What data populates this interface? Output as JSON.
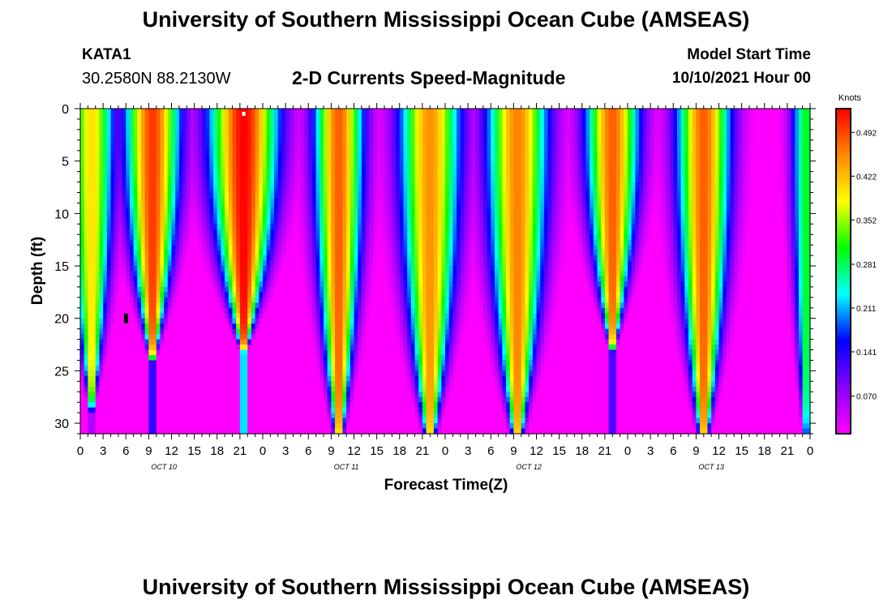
{
  "header": {
    "title": "University of Southern Mississippi Ocean Cube (AMSEAS)",
    "station_id": "KATA1",
    "coordinates": "30.2580N  88.2130W",
    "plot_title": "2-D Currents Speed-Magnitude",
    "model_start_label": "Model Start Time",
    "model_start_value": "10/10/2021 Hour 00"
  },
  "footer": {
    "title": "University of Southern Mississippi Ocean Cube (AMSEAS)"
  },
  "chart_data": {
    "type": "heatmap",
    "title": "2-D Currents Speed-Magnitude",
    "xlabel": "Forecast Time(Z)",
    "ylabel": "Depth (ft)",
    "x_range_hours": [
      0,
      96
    ],
    "x_ticks": [
      {
        "hour": 0,
        "label": "0"
      },
      {
        "hour": 3,
        "label": "3"
      },
      {
        "hour": 6,
        "label": "6"
      },
      {
        "hour": 9,
        "label": "9"
      },
      {
        "hour": 12,
        "label": "12"
      },
      {
        "hour": 15,
        "label": "15"
      },
      {
        "hour": 18,
        "label": "18"
      },
      {
        "hour": 21,
        "label": "21"
      },
      {
        "hour": 24,
        "label": "0"
      },
      {
        "hour": 27,
        "label": "3"
      },
      {
        "hour": 30,
        "label": "6"
      },
      {
        "hour": 33,
        "label": "9"
      },
      {
        "hour": 36,
        "label": "12"
      },
      {
        "hour": 39,
        "label": "15"
      },
      {
        "hour": 42,
        "label": "18"
      },
      {
        "hour": 45,
        "label": "21"
      },
      {
        "hour": 48,
        "label": "0"
      },
      {
        "hour": 51,
        "label": "3"
      },
      {
        "hour": 54,
        "label": "6"
      },
      {
        "hour": 57,
        "label": "9"
      },
      {
        "hour": 60,
        "label": "12"
      },
      {
        "hour": 63,
        "label": "15"
      },
      {
        "hour": 66,
        "label": "18"
      },
      {
        "hour": 69,
        "label": "21"
      },
      {
        "hour": 72,
        "label": "0"
      },
      {
        "hour": 75,
        "label": "3"
      },
      {
        "hour": 78,
        "label": "6"
      },
      {
        "hour": 81,
        "label": "9"
      },
      {
        "hour": 84,
        "label": "12"
      },
      {
        "hour": 87,
        "label": "15"
      },
      {
        "hour": 90,
        "label": "18"
      },
      {
        "hour": 93,
        "label": "21"
      },
      {
        "hour": 96,
        "label": "0"
      }
    ],
    "date_labels": [
      {
        "hour": 11,
        "label": "OCT 10"
      },
      {
        "hour": 35,
        "label": "OCT 11"
      },
      {
        "hour": 59,
        "label": "OCT 12"
      },
      {
        "hour": 83,
        "label": "OCT 13"
      }
    ],
    "y_range_ft": [
      0,
      31
    ],
    "y_ticks": [
      0,
      5,
      10,
      15,
      20,
      25,
      30
    ],
    "colorbar": {
      "unit_label": "Knots",
      "min": 0.01,
      "max": 0.53,
      "tick_values": [
        0.07,
        0.141,
        0.211,
        0.281,
        0.352,
        0.422,
        0.492
      ],
      "tick_labels": [
        "0.070",
        "0.141",
        "0.211",
        "0.281",
        "0.352",
        "0.422",
        "0.492"
      ],
      "stops": [
        "#ff00ff",
        "#8800ff",
        "#0000ff",
        "#00ffff",
        "#00ff00",
        "#ffff00",
        "#ff8800",
        "#ff0000"
      ]
    },
    "speed_peaks": [
      {
        "hour": 1.5,
        "speed": 0.4,
        "depth_ft": 30,
        "width_h": 3.0
      },
      {
        "hour": 9.5,
        "speed": 0.5,
        "depth_ft": 25,
        "width_h": 3.6
      },
      {
        "hour": 21.5,
        "speed": 0.53,
        "depth_ft": 24,
        "width_h": 4.5
      },
      {
        "hour": 34.0,
        "speed": 0.48,
        "depth_ft": 34,
        "width_h": 3.2
      },
      {
        "hour": 46.0,
        "speed": 0.45,
        "depth_ft": 34,
        "width_h": 4.0
      },
      {
        "hour": 57.5,
        "speed": 0.46,
        "depth_ft": 34,
        "width_h": 4.0
      },
      {
        "hour": 70.0,
        "speed": 0.48,
        "depth_ft": 24,
        "width_h": 3.5
      },
      {
        "hour": 82.0,
        "speed": 0.48,
        "depth_ft": 34,
        "width_h": 3.5
      },
      {
        "hour": 95.5,
        "speed": 0.3,
        "depth_ft": 34,
        "width_h": 2.0
      }
    ],
    "markers": [
      {
        "hour": 21.5,
        "depth_ft": 0.3,
        "color": "#ffffff",
        "label": "surface marker"
      },
      {
        "hour": 6.0,
        "depth_ft": 20,
        "color": "#000000",
        "label": "depth marker"
      }
    ]
  }
}
